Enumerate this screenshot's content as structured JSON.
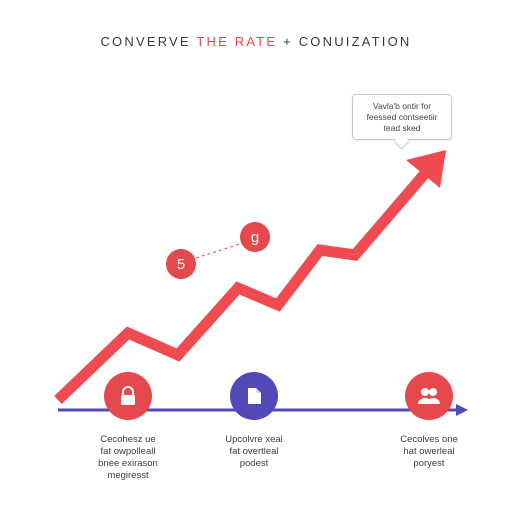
{
  "title": {
    "part1": "CONVERVE ",
    "accent": "THE RATE",
    "part2": " + CONUIZATION"
  },
  "callout": {
    "line1": "Vavla'b ontir for",
    "line2": "feessed contseetiir",
    "line3": "tead sked"
  },
  "bubbles": {
    "left": "5",
    "right": "g"
  },
  "milestones": [
    {
      "icon": "lock-icon",
      "color": "#e5484d",
      "caption": [
        "Cecohesz ue",
        "fat owpolleall",
        "bnee exirason",
        "megiresst"
      ]
    },
    {
      "icon": "document-icon",
      "color": "#5348b8",
      "caption": [
        "Upcolvre xeal",
        "fat overtleal",
        "podest"
      ]
    },
    {
      "icon": "users-icon",
      "color": "#e5484d",
      "caption": [
        "Cecolves one",
        "hat owerleal",
        "poryest"
      ]
    }
  ],
  "colors": {
    "trend": "#f04b50",
    "axis": "#5348b8",
    "accent": "#e5484d"
  }
}
